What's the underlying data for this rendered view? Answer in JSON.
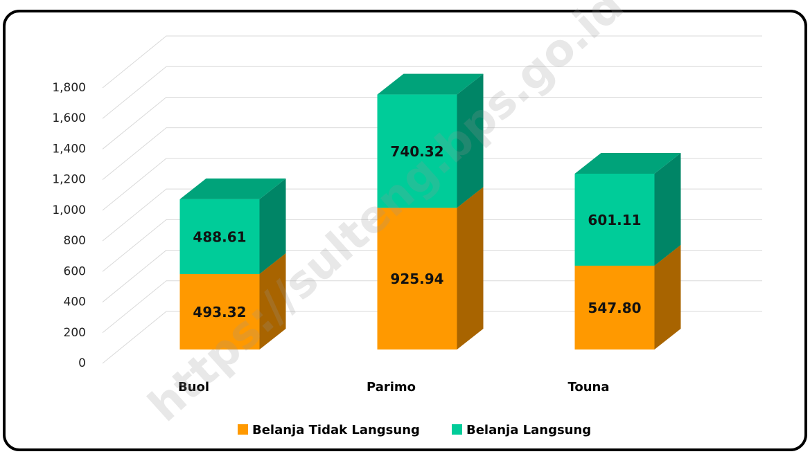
{
  "chart_data": {
    "type": "bar3d-stacked",
    "categories": [
      "Buol",
      "Parimo",
      "Touna"
    ],
    "series": [
      {
        "name": "Belanja Tidak Langsung",
        "color": "#ff9900",
        "side": "#a86400",
        "top": "#c97a00",
        "values": [
          493.32,
          925.94,
          547.8
        ],
        "value_labels": [
          "493.32",
          "925.94",
          "547.80"
        ]
      },
      {
        "name": "Belanja Langsung",
        "color": "#00cc99",
        "side": "#008566",
        "top": "#00a37a",
        "values": [
          488.61,
          740.32,
          601.11
        ],
        "value_labels": [
          "488.61",
          "740.32",
          "601.11"
        ]
      }
    ],
    "ylim": [
      0,
      1800
    ],
    "yticks": [
      0,
      200,
      400,
      600,
      800,
      {
        "value": 1000,
        "label": "1,000"
      },
      {
        "value": 1200,
        "label": "1,200"
      },
      {
        "value": 1400,
        "label": "1,400"
      },
      {
        "value": 1600,
        "label": "1,600"
      },
      {
        "value": 1800,
        "label": "1,800"
      }
    ],
    "grid": true,
    "legend": "bottom",
    "watermark": "https://sulteng.bps.go.id"
  }
}
